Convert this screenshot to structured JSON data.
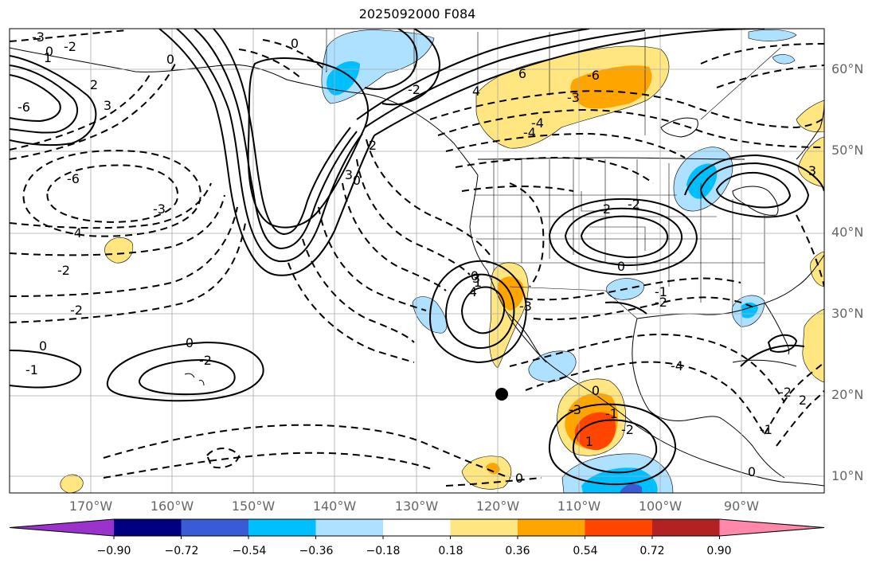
{
  "title": "2025092000 F084",
  "lat_labels": [
    "60°N",
    "50°N",
    "40°N",
    "30°N",
    "20°N",
    "10°N"
  ],
  "lon_labels": [
    "170°W",
    "160°W",
    "150°W",
    "140°W",
    "130°W",
    "120°W",
    "110°W",
    "100°W",
    "90°W"
  ],
  "colorbar": {
    "tick_labels": [
      "−0.90",
      "−0.72",
      "−0.54",
      "−0.36",
      "−0.18",
      "0.18",
      "0.36",
      "0.54",
      "0.72",
      "0.90"
    ],
    "colors": [
      "#9933cc",
      "#000080",
      "#3a5bd6",
      "#00bfff",
      "#aee0ff",
      "#ffffff",
      "#ffe680",
      "#ffa500",
      "#ff4500",
      "#b22222",
      "#ff88aa"
    ]
  },
  "contour_labels": [
    "3",
    "2",
    "0",
    "1",
    "-3",
    "-6",
    "-2",
    "-6",
    "-3",
    "-4",
    "-2",
    "-2",
    "0",
    "0",
    "-2",
    "6",
    "4",
    "3",
    "2",
    "0",
    "-6",
    "-3",
    "-4",
    "-4",
    "-3",
    "2",
    "-2",
    "0",
    "1",
    "0",
    "3",
    "4",
    "-1",
    "-2",
    "0",
    "-1",
    "-2",
    "0",
    "1",
    "0",
    "-1",
    "-2",
    "-3",
    "0",
    "0",
    "-1",
    "-2",
    "2",
    "-4",
    "3"
  ]
}
